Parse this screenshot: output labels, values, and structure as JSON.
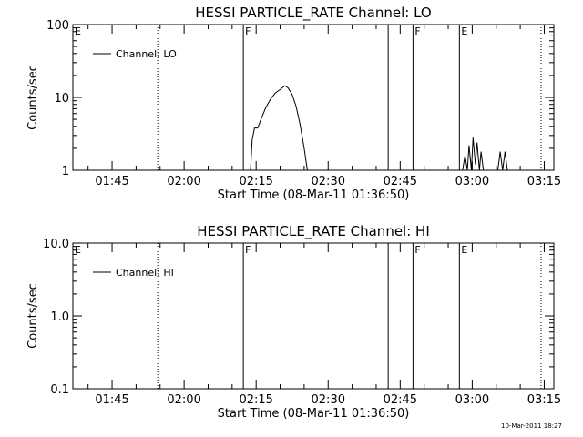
{
  "footer": {
    "timestamp": "10-Mar-2011 18:27"
  },
  "chart_data": [
    {
      "type": "line",
      "title": "HESSI PARTICLE_RATE Channel: LO",
      "xlabel": "Start Time (08-Mar-11 01:36:50)",
      "ylabel": "Counts/sec",
      "y_scale": "log",
      "ylim": [
        1,
        100
      ],
      "y_ticks": [
        1,
        10,
        100
      ],
      "y_tick_labels": [
        "1",
        "10",
        "100"
      ],
      "xlim": [
        "01:36:50",
        "03:17:00"
      ],
      "x_tick_labels": [
        "01:45",
        "02:00",
        "02:15",
        "02:30",
        "02:45",
        "03:00",
        "03:15"
      ],
      "legend": {
        "label": "Channel: LO",
        "position": "top-left"
      },
      "series": [
        {
          "name": "Channel: LO",
          "points": [
            [
              "02:13:50",
              1
            ],
            [
              "02:14:10",
              2.6
            ],
            [
              "02:14:40",
              3.8
            ],
            [
              "02:15:20",
              3.8
            ],
            [
              "02:16:00",
              5
            ],
            [
              "02:17:00",
              7.2
            ],
            [
              "02:18:00",
              9.5
            ],
            [
              "02:19:00",
              11.5
            ],
            [
              "02:20:00",
              12.8
            ],
            [
              "02:21:00",
              14.5
            ],
            [
              "02:21:40",
              13.5
            ],
            [
              "02:22:30",
              11
            ],
            [
              "02:23:20",
              7.5
            ],
            [
              "02:24:10",
              4.2
            ],
            [
              "02:25:00",
              2
            ],
            [
              "02:25:40",
              1
            ]
          ]
        },
        {
          "name": "Channel: LO",
          "points": [
            [
              "02:58:00",
              1
            ],
            [
              "02:58:30",
              1.6
            ],
            [
              "02:59:00",
              1
            ],
            [
              "02:59:20",
              2.2
            ],
            [
              "02:59:50",
              1
            ],
            [
              "03:00:10",
              2.8
            ],
            [
              "03:00:40",
              1.2
            ],
            [
              "03:01:00",
              2.4
            ],
            [
              "03:01:30",
              1
            ],
            [
              "03:01:50",
              1.8
            ],
            [
              "03:02:20",
              1
            ]
          ]
        },
        {
          "name": "Channel: LO",
          "points": [
            [
              "03:05:20",
              1
            ],
            [
              "03:05:50",
              1.8
            ],
            [
              "03:06:20",
              1
            ],
            [
              "03:06:50",
              1.8
            ],
            [
              "03:07:20",
              1
            ]
          ]
        }
      ],
      "markers": [
        {
          "time": "01:54:30",
          "style": "dotted",
          "label": ""
        },
        {
          "time": "02:12:20",
          "style": "solid",
          "label": "F"
        },
        {
          "time": "02:42:30",
          "style": "solid",
          "label": ""
        },
        {
          "time": "02:47:40",
          "style": "solid",
          "label": "F"
        },
        {
          "time": "02:57:20",
          "style": "solid",
          "label": "E"
        },
        {
          "time": "03:14:20",
          "style": "dotted",
          "label": ""
        }
      ],
      "corner_label": "E"
    },
    {
      "type": "line",
      "title": "HESSI PARTICLE_RATE Channel: HI",
      "xlabel": "Start Time (08-Mar-11 01:36:50)",
      "ylabel": "Counts/sec",
      "y_scale": "log",
      "ylim": [
        0.1,
        10
      ],
      "y_ticks": [
        0.1,
        1,
        10
      ],
      "y_tick_labels": [
        "0.1",
        "1.0",
        "10.0"
      ],
      "xlim": [
        "01:36:50",
        "03:17:00"
      ],
      "x_tick_labels": [
        "01:45",
        "02:00",
        "02:15",
        "02:30",
        "02:45",
        "03:00",
        "03:15"
      ],
      "legend": {
        "label": "Channel: HI",
        "position": "top-left"
      },
      "series": [],
      "markers": [
        {
          "time": "01:54:30",
          "style": "dotted",
          "label": ""
        },
        {
          "time": "02:12:20",
          "style": "solid",
          "label": "F"
        },
        {
          "time": "02:42:30",
          "style": "solid",
          "label": ""
        },
        {
          "time": "02:47:40",
          "style": "solid",
          "label": "F"
        },
        {
          "time": "02:57:20",
          "style": "solid",
          "label": "E"
        },
        {
          "time": "03:14:20",
          "style": "dotted",
          "label": ""
        }
      ],
      "corner_label": "E"
    }
  ]
}
